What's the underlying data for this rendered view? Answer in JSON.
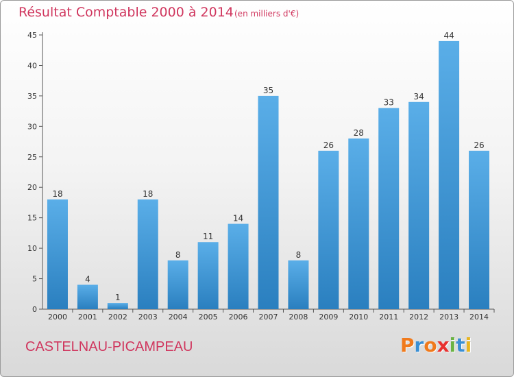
{
  "header": {
    "title": "Résultat Comptable 2000 à 2014",
    "subtitle": "(en milliers d'€)"
  },
  "footer": {
    "commune": "CASTELNAU-PICAMPEAU",
    "logo": "Proxiti"
  },
  "colors": {
    "title": "#d0365e",
    "bar_light": "#5aaee8",
    "bar_dark": "#2a7fbf",
    "logo_letters": [
      "#f07a1c",
      "#3a8fd4",
      "#f07a1c",
      "#e8312f",
      "#6bb344",
      "#3a8fd4",
      "#e8b520"
    ]
  },
  "chart_data": {
    "type": "bar",
    "title": "Résultat Comptable 2000 à 2014",
    "subtitle": "(en milliers d'€)",
    "categories": [
      "2000",
      "2001",
      "2002",
      "2003",
      "2004",
      "2005",
      "2006",
      "2007",
      "2008",
      "2009",
      "2010",
      "2011",
      "2012",
      "2013",
      "2014"
    ],
    "values": [
      18,
      4,
      1,
      18,
      8,
      11,
      14,
      35,
      8,
      26,
      28,
      33,
      34,
      44,
      26
    ],
    "ylim": [
      0,
      45
    ],
    "yticks": [
      0,
      5,
      10,
      15,
      20,
      25,
      30,
      35,
      40,
      45
    ],
    "grid": false,
    "data_labels": true
  }
}
